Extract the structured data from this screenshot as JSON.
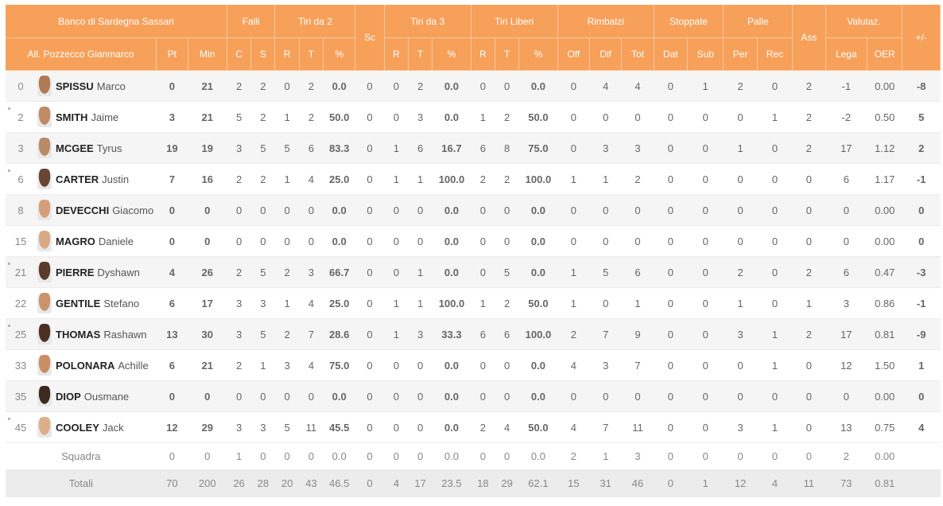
{
  "colors": {
    "header_bg": "#f7a05a",
    "header_text": "#ffffff",
    "row_alt": "#f5f5f5"
  },
  "header": {
    "team": "Banco di Sardegna Sassari",
    "coach": "All. Pozzecco Gianmarco",
    "pt": "Pt",
    "min": "Min",
    "groups": {
      "falli": "Falli",
      "tiri2": "Tiri da 2",
      "sc": "Sc",
      "tiri3": "Tiri da 3",
      "liberi": "Tiri Liberi",
      "rimbalzi": "Rimbalzi",
      "stoppate": "Stoppate",
      "palle": "Palle",
      "ass": "Ass",
      "valutaz": "Valutaz.",
      "plusminus": "+/-"
    },
    "sub": {
      "c": "C",
      "s": "S",
      "r2": "R",
      "t2": "T",
      "p2": "%",
      "r3": "R",
      "t3": "T",
      "p3": "%",
      "rl": "R",
      "tl": "T",
      "pl": "%",
      "off": "Off",
      "dif": "Dif",
      "tot": "Tot",
      "dat": "Dat",
      "sub": "Sub",
      "per": "Per",
      "rec": "Rec",
      "lega": "Lega",
      "oer": "OER"
    }
  },
  "players": [
    {
      "num": "0",
      "dot": false,
      "surname": "SPISSU",
      "name": "Marco",
      "avatar": "#b07a55",
      "pt": "0",
      "min": "21",
      "c": "2",
      "s": "2",
      "r2": "0",
      "t2": "2",
      "p2": "0.0",
      "sc": "0",
      "r3": "0",
      "t3": "2",
      "p3": "0.0",
      "rl": "0",
      "tl": "0",
      "pl": "0.0",
      "off": "0",
      "dif": "4",
      "tot": "4",
      "dat": "0",
      "sub": "1",
      "per": "2",
      "rec": "0",
      "ass": "2",
      "lega": "-1",
      "oer": "0.00",
      "pm": "-8"
    },
    {
      "num": "2",
      "dot": true,
      "surname": "SMITH",
      "name": "Jaime",
      "avatar": "#c08a62",
      "pt": "3",
      "min": "21",
      "c": "5",
      "s": "2",
      "r2": "1",
      "t2": "2",
      "p2": "50.0",
      "sc": "0",
      "r3": "0",
      "t3": "3",
      "p3": "0.0",
      "rl": "1",
      "tl": "2",
      "pl": "50.0",
      "off": "0",
      "dif": "0",
      "tot": "0",
      "dat": "0",
      "sub": "0",
      "per": "0",
      "rec": "1",
      "ass": "2",
      "lega": "-2",
      "oer": "0.50",
      "pm": "5"
    },
    {
      "num": "3",
      "dot": false,
      "surname": "MCGEE",
      "name": "Tyrus",
      "avatar": "#b98a66",
      "pt": "19",
      "min": "19",
      "c": "3",
      "s": "5",
      "r2": "5",
      "t2": "6",
      "p2": "83.3",
      "sc": "0",
      "r3": "1",
      "t3": "6",
      "p3": "16.7",
      "rl": "6",
      "tl": "8",
      "pl": "75.0",
      "off": "0",
      "dif": "3",
      "tot": "3",
      "dat": "0",
      "sub": "0",
      "per": "1",
      "rec": "0",
      "ass": "2",
      "lega": "17",
      "oer": "1.12",
      "pm": "2"
    },
    {
      "num": "6",
      "dot": true,
      "surname": "CARTER",
      "name": "Justin",
      "avatar": "#6a4530",
      "pt": "7",
      "min": "16",
      "c": "2",
      "s": "2",
      "r2": "1",
      "t2": "4",
      "p2": "25.0",
      "sc": "0",
      "r3": "1",
      "t3": "1",
      "p3": "100.0",
      "rl": "2",
      "tl": "2",
      "pl": "100.0",
      "off": "1",
      "dif": "1",
      "tot": "2",
      "dat": "0",
      "sub": "0",
      "per": "0",
      "rec": "0",
      "ass": "0",
      "lega": "6",
      "oer": "1.17",
      "pm": "-1"
    },
    {
      "num": "8",
      "dot": false,
      "surname": "DEVECCHI",
      "name": "Giacomo",
      "avatar": "#d4a07a",
      "pt": "0",
      "min": "0",
      "c": "0",
      "s": "0",
      "r2": "0",
      "t2": "0",
      "p2": "0.0",
      "sc": "0",
      "r3": "0",
      "t3": "0",
      "p3": "0.0",
      "rl": "0",
      "tl": "0",
      "pl": "0.0",
      "off": "0",
      "dif": "0",
      "tot": "0",
      "dat": "0",
      "sub": "0",
      "per": "0",
      "rec": "0",
      "ass": "0",
      "lega": "0",
      "oer": "0.00",
      "pm": "0"
    },
    {
      "num": "15",
      "dot": false,
      "surname": "MAGRO",
      "name": "Daniele",
      "avatar": "#d9a985",
      "pt": "0",
      "min": "0",
      "c": "0",
      "s": "0",
      "r2": "0",
      "t2": "0",
      "p2": "0.0",
      "sc": "0",
      "r3": "0",
      "t3": "0",
      "p3": "0.0",
      "rl": "0",
      "tl": "0",
      "pl": "0.0",
      "off": "0",
      "dif": "0",
      "tot": "0",
      "dat": "0",
      "sub": "0",
      "per": "0",
      "rec": "0",
      "ass": "0",
      "lega": "0",
      "oer": "0.00",
      "pm": "0"
    },
    {
      "num": "21",
      "dot": true,
      "surname": "PIERRE",
      "name": "Dyshawn",
      "avatar": "#5a3a28",
      "pt": "4",
      "min": "26",
      "c": "2",
      "s": "5",
      "r2": "2",
      "t2": "3",
      "p2": "66.7",
      "sc": "0",
      "r3": "0",
      "t3": "1",
      "p3": "0.0",
      "rl": "0",
      "tl": "5",
      "pl": "0.0",
      "off": "1",
      "dif": "5",
      "tot": "6",
      "dat": "0",
      "sub": "0",
      "per": "2",
      "rec": "0",
      "ass": "2",
      "lega": "6",
      "oer": "0.47",
      "pm": "-3"
    },
    {
      "num": "22",
      "dot": false,
      "surname": "GENTILE",
      "name": "Stefano",
      "avatar": "#c9946c",
      "pt": "6",
      "min": "17",
      "c": "3",
      "s": "3",
      "r2": "1",
      "t2": "4",
      "p2": "25.0",
      "sc": "0",
      "r3": "1",
      "t3": "1",
      "p3": "100.0",
      "rl": "1",
      "tl": "2",
      "pl": "50.0",
      "off": "1",
      "dif": "0",
      "tot": "1",
      "dat": "0",
      "sub": "0",
      "per": "1",
      "rec": "0",
      "ass": "1",
      "lega": "3",
      "oer": "0.86",
      "pm": "-1"
    },
    {
      "num": "25",
      "dot": true,
      "surname": "THOMAS",
      "name": "Rashawn",
      "avatar": "#4a2f22",
      "pt": "13",
      "min": "30",
      "c": "3",
      "s": "5",
      "r2": "2",
      "t2": "7",
      "p2": "28.6",
      "sc": "0",
      "r3": "1",
      "t3": "3",
      "p3": "33.3",
      "rl": "6",
      "tl": "6",
      "pl": "100.0",
      "off": "2",
      "dif": "7",
      "tot": "9",
      "dat": "0",
      "sub": "0",
      "per": "3",
      "rec": "1",
      "ass": "2",
      "lega": "17",
      "oer": "0.81",
      "pm": "-9"
    },
    {
      "num": "33",
      "dot": false,
      "surname": "POLONARA",
      "name": "Achille",
      "avatar": "#c88e66",
      "pt": "6",
      "min": "21",
      "c": "2",
      "s": "1",
      "r2": "3",
      "t2": "4",
      "p2": "75.0",
      "sc": "0",
      "r3": "0",
      "t3": "0",
      "p3": "0.0",
      "rl": "0",
      "tl": "0",
      "pl": "0.0",
      "off": "4",
      "dif": "3",
      "tot": "7",
      "dat": "0",
      "sub": "0",
      "per": "0",
      "rec": "1",
      "ass": "0",
      "lega": "12",
      "oer": "1.50",
      "pm": "1"
    },
    {
      "num": "35",
      "dot": false,
      "surname": "DIOP",
      "name": "Ousmane",
      "avatar": "#3d2a20",
      "pt": "0",
      "min": "0",
      "c": "0",
      "s": "0",
      "r2": "0",
      "t2": "0",
      "p2": "0.0",
      "sc": "0",
      "r3": "0",
      "t3": "0",
      "p3": "0.0",
      "rl": "0",
      "tl": "0",
      "pl": "0.0",
      "off": "0",
      "dif": "0",
      "tot": "0",
      "dat": "0",
      "sub": "0",
      "per": "0",
      "rec": "0",
      "ass": "0",
      "lega": "0",
      "oer": "0.00",
      "pm": "0"
    },
    {
      "num": "45",
      "dot": true,
      "surname": "COOLEY",
      "name": "Jack",
      "avatar": "#dcae8a",
      "pt": "12",
      "min": "29",
      "c": "3",
      "s": "3",
      "r2": "5",
      "t2": "11",
      "p2": "45.5",
      "sc": "0",
      "r3": "0",
      "t3": "0",
      "p3": "0.0",
      "rl": "2",
      "tl": "4",
      "pl": "50.0",
      "off": "4",
      "dif": "7",
      "tot": "11",
      "dat": "0",
      "sub": "0",
      "per": "3",
      "rec": "1",
      "ass": "0",
      "lega": "13",
      "oer": "0.75",
      "pm": "4"
    }
  ],
  "squadra": {
    "label": "Squadra",
    "pt": "0",
    "min": "0",
    "c": "1",
    "s": "0",
    "r2": "0",
    "t2": "0",
    "p2": "0.0",
    "sc": "0",
    "r3": "0",
    "t3": "0",
    "p3": "0.0",
    "rl": "0",
    "tl": "0",
    "pl": "0.0",
    "off": "2",
    "dif": "1",
    "tot": "3",
    "dat": "0",
    "sub": "0",
    "per": "0",
    "rec": "0",
    "ass": "0",
    "lega": "2",
    "oer": "0.00",
    "pm": ""
  },
  "totali": {
    "label": "Totali",
    "pt": "70",
    "min": "200",
    "c": "26",
    "s": "28",
    "r2": "20",
    "t2": "43",
    "p2": "46.5",
    "sc": "0",
    "r3": "4",
    "t3": "17",
    "p3": "23.5",
    "rl": "18",
    "tl": "29",
    "pl": "62.1",
    "off": "15",
    "dif": "31",
    "tot": "46",
    "dat": "0",
    "sub": "1",
    "per": "12",
    "rec": "4",
    "ass": "11",
    "lega": "73",
    "oer": "0.81",
    "pm": ""
  }
}
